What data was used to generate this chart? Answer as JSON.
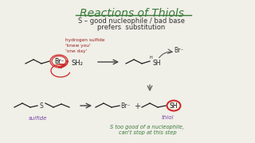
{
  "bg_color": "#f0efe8",
  "title": "Reactions of Thiols",
  "title_color": "#3a7a3a",
  "subtitle1": "S – good nucleophile / bad base",
  "subtitle2": "prefers  substitution",
  "subtitle_color": "#333333",
  "annotation1": "hydrogen sulfide\n'knew you'\n'one day'",
  "annotation1_color": "#9b2020",
  "circle_color": "#cc2222",
  "note_line1": "S too good of a nucleophile,",
  "note_line2": "can't stop at this step",
  "note_color": "#3a7a3a",
  "label_sulfide": "sulfide",
  "label_thiol": "thiol",
  "label_color": "#7744aa",
  "down_arrow_color": "#666666",
  "line_color": "#222222"
}
